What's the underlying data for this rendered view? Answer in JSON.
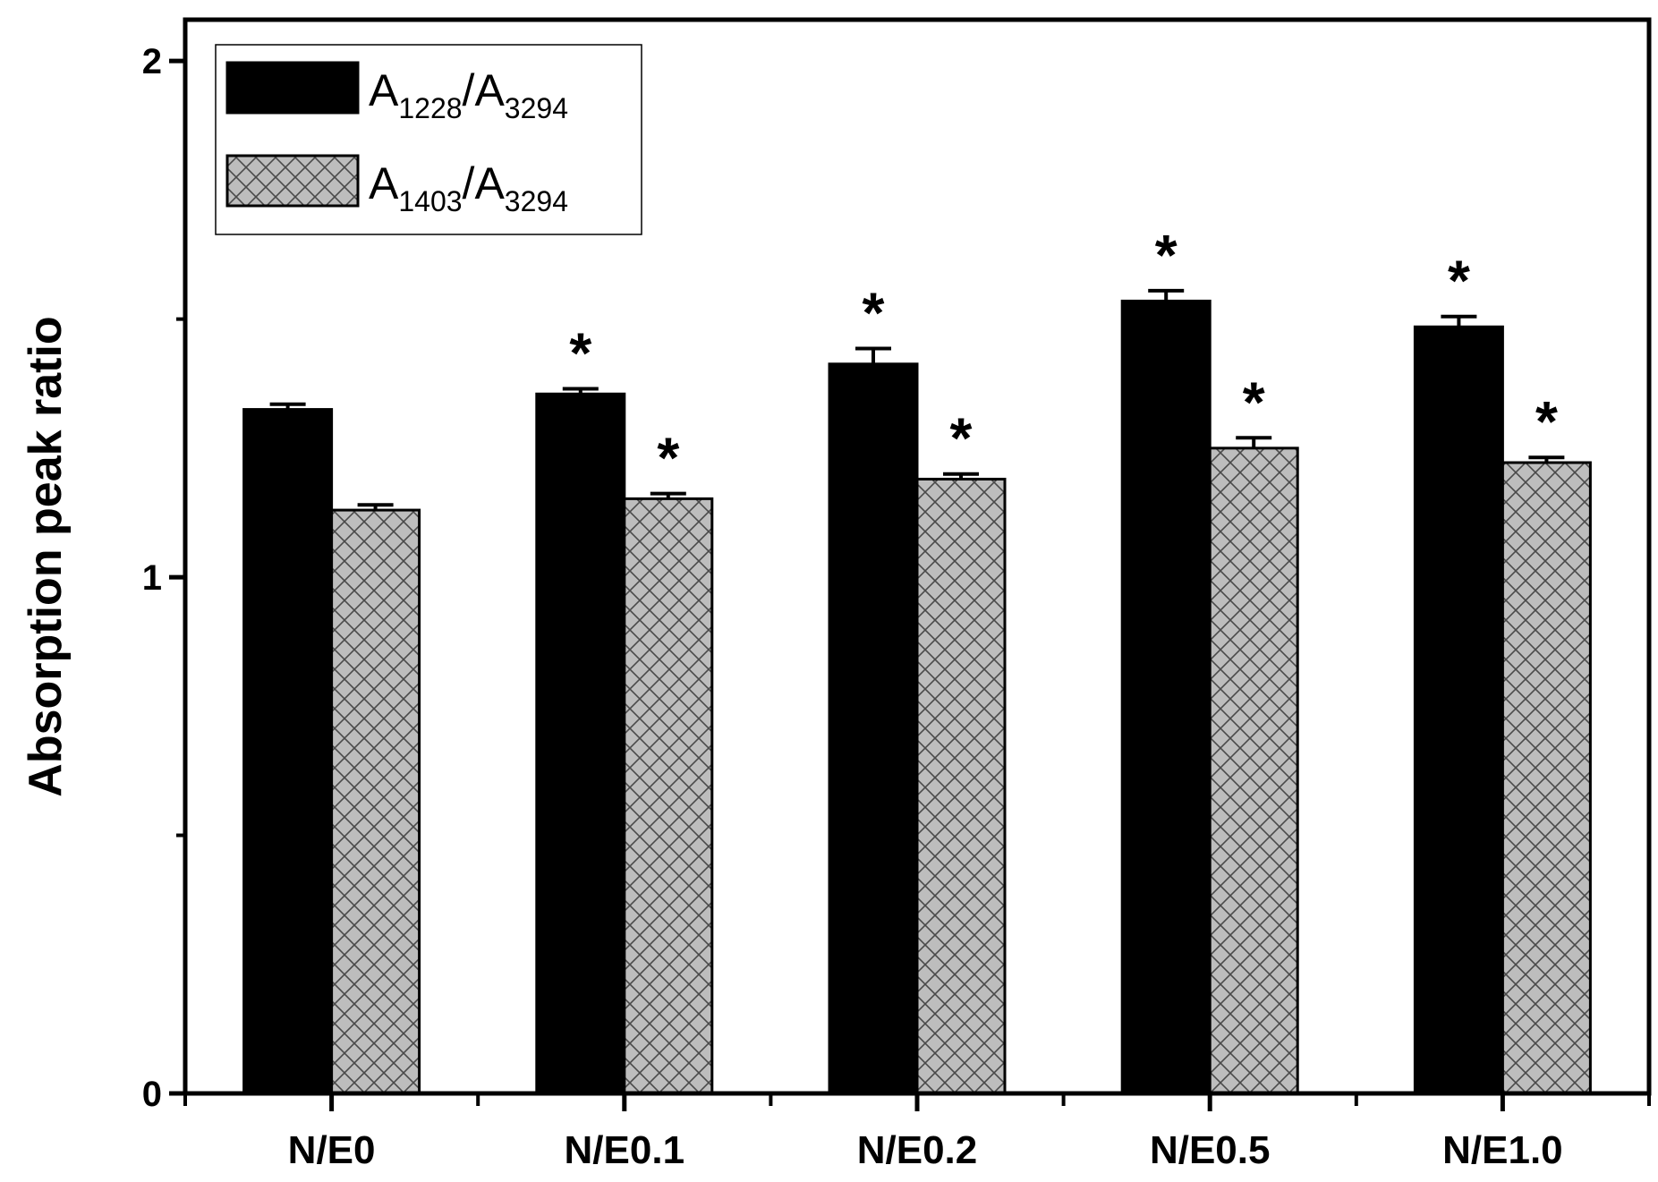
{
  "chart_data": {
    "type": "bar",
    "title": "",
    "xlabel": "",
    "ylabel": "Absorption peak ratio",
    "ylim": [
      0,
      2.08
    ],
    "yticks": [
      0,
      1,
      2
    ],
    "yticks_minor": [
      0.5,
      1.5
    ],
    "categories": [
      "N/E0",
      "N/E0.1",
      "N/E0.2",
      "N/E0.5",
      "N/E1.0"
    ],
    "series": [
      {
        "name": "A1228/A3294",
        "legend_main": "A",
        "legend_sub1": "1228",
        "legend_mid": "/A",
        "legend_sub2": "3294",
        "values": [
          1.325,
          1.355,
          1.413,
          1.535,
          1.485
        ],
        "errors": [
          0.01,
          0.01,
          0.03,
          0.02,
          0.02
        ],
        "significant": [
          false,
          true,
          true,
          true,
          true
        ],
        "fill": "solid-black"
      },
      {
        "name": "A1403/A3294",
        "legend_main": "A",
        "legend_sub1": "1403",
        "legend_mid": "/A",
        "legend_sub2": "3294",
        "values": [
          1.13,
          1.152,
          1.19,
          1.25,
          1.222
        ],
        "errors": [
          0.01,
          0.01,
          0.01,
          0.02,
          0.01
        ],
        "significant": [
          false,
          true,
          true,
          true,
          true
        ],
        "fill": "gray-crosshatch"
      }
    ],
    "significance_marker": "*",
    "legend_position": "top-left"
  },
  "colors": {
    "axis": "#000000",
    "bar1": "#000000",
    "bar2": "#bdbdbd",
    "hatch": "#555555"
  }
}
